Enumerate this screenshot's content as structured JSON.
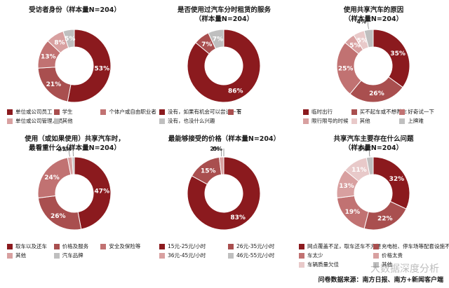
{
  "palette": [
    "#8b1a1e",
    "#a94f4f",
    "#c17272",
    "#d8a0a0",
    "#e8c9c9",
    "#bfbfbf"
  ],
  "chart_data": [
    {
      "type": "pie",
      "title": "受访者身份（样本量N=204）",
      "slices": [
        {
          "label": "单位或公司员工",
          "value": 53,
          "text": "53%"
        },
        {
          "label": "学生",
          "value": 21,
          "text": "21%"
        },
        {
          "label": "个体户或自由职业者",
          "value": 13,
          "text": "13%"
        },
        {
          "label": "单位或公司管理人员",
          "value": 8,
          "text": "8%"
        },
        {
          "label": "其他",
          "value": 5,
          "text": "5%"
        }
      ],
      "colors": [
        "#8b1a1e",
        "#a94f4f",
        "#c17272",
        "#d8a0a0",
        "#bfbfbf"
      ],
      "legend": [
        "单位或公司员工",
        "学生",
        "个体户或自由职业者",
        "单位或公司管理人员",
        "其他"
      ]
    },
    {
      "type": "pie",
      "title": "是否使用过汽车分时租赁的服务\n（样本量N=204）",
      "slices": [
        {
          "label": "没有，如果有机会可以尝试一下",
          "value": 86,
          "text": "86%"
        },
        {
          "label": "有",
          "value": 7,
          "text": "7%"
        },
        {
          "label": "没有，也没什么兴趣",
          "value": 7,
          "text": "7%"
        }
      ],
      "colors": [
        "#8b1a1e",
        "#a94f4f",
        "#bfbfbf"
      ],
      "legend": [
        "没有，如果有机会可以尝试一下",
        "有",
        "没有，也没什么兴趣"
      ]
    },
    {
      "type": "pie",
      "title": "使用共享汽车的原因\n（样本量N=204）",
      "slices": [
        {
          "label": "临时出行",
          "value": 35,
          "text": "35%"
        },
        {
          "label": "买不起车或不想养车",
          "value": 26,
          "text": "26%"
        },
        {
          "label": "好奇试一下",
          "value": 25,
          "text": "25%"
        },
        {
          "label": "限行限号的时候",
          "value": 5,
          "text": "5%"
        },
        {
          "label": "其他",
          "value": 5,
          "text": "5%"
        },
        {
          "label": "上牌难",
          "value": 4,
          "text": "4%"
        }
      ],
      "colors": [
        "#8b1a1e",
        "#a94f4f",
        "#c17272",
        "#d8a0a0",
        "#e8c9c9",
        "#bfbfbf"
      ],
      "legend": [
        "临时出行",
        "买不起车或不想养车",
        "好奇试一下",
        "限行限号的时候",
        "其他",
        "上牌难"
      ]
    },
    {
      "type": "pie",
      "title": "使用（或如果使用）共享汽车时，\n最看重什么（样本量N=204）",
      "slices": [
        {
          "label": "取车以及还车",
          "value": 47,
          "text": "47%"
        },
        {
          "label": "价格及服务",
          "value": 26,
          "text": "26%"
        },
        {
          "label": "安全及保险等",
          "value": 24,
          "text": "24%"
        },
        {
          "label": "其他",
          "value": 2,
          "text": "2%"
        },
        {
          "label": "汽车品牌",
          "value": 1,
          "text": "1%"
        }
      ],
      "colors": [
        "#8b1a1e",
        "#a94f4f",
        "#c17272",
        "#d8a0a0",
        "#bfbfbf"
      ],
      "legend": [
        "取车以及还车",
        "价格及服务",
        "安全及保险等",
        "其他",
        "汽车品牌"
      ]
    },
    {
      "type": "pie",
      "title": "最能够接受的价格（样本量N=204）",
      "slices": [
        {
          "label": "15元-25元/小时",
          "value": 83,
          "text": "83%"
        },
        {
          "label": "26元-35元/小时",
          "value": 15,
          "text": "15%"
        },
        {
          "label": "36元-45元/小时",
          "value": 2,
          "text": "2%"
        },
        {
          "label": "46元-55元/小时",
          "value": 0,
          "text": "0%"
        }
      ],
      "colors": [
        "#8b1a1e",
        "#a94f4f",
        "#d8a0a0",
        "#bfbfbf"
      ],
      "legend": [
        "15元-25元/小时",
        "26元-35元/小时",
        "36元-45元/小时",
        "46元-55元/小时"
      ]
    },
    {
      "type": "pie",
      "title": "共享汽车主要存在什么问题\n（样本量N=204）",
      "slices": [
        {
          "label": "网点覆盖不足，取车还车不方便",
          "value": 32,
          "text": "32%"
        },
        {
          "label": "充电桩、停车场等配套设施不齐全",
          "value": 22,
          "text": "22%"
        },
        {
          "label": "车太少",
          "value": 19,
          "text": "19%"
        },
        {
          "label": "价格太贵",
          "value": 13,
          "text": "13%"
        },
        {
          "label": "车辆质量欠佳",
          "value": 11,
          "text": "11%"
        },
        {
          "label": "其他",
          "value": 3,
          "text": "3%"
        }
      ],
      "colors": [
        "#8b1a1e",
        "#a94f4f",
        "#c17272",
        "#d8a0a0",
        "#e8c9c9",
        "#bfbfbf"
      ],
      "legend": [
        "网点覆盖不足，取车还车不方便",
        "充电桩、停车场等配套设施不齐全",
        "车太少",
        "价格太贵",
        "车辆质量欠佳",
        "其他"
      ]
    }
  ],
  "footer": {
    "source": "问卷数据来源：南方日报、南方+新闻客户端",
    "watermark": "大数据深度分析"
  }
}
